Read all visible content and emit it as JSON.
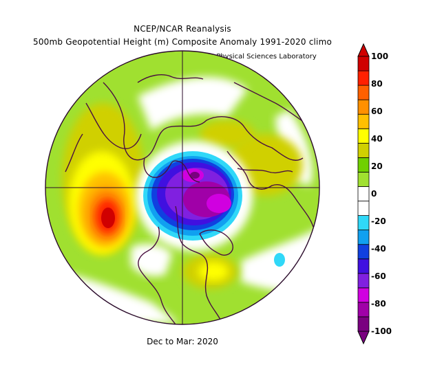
{
  "title_line1": "NCEP/NCAR Reanalysis",
  "title_line2": "500mb Geopotential Height (m) Composite Anomaly 1991-2020 climo",
  "credit": "NOAA Physical Sciences Laboratory",
  "period": "Dec to Mar: 2020",
  "colorbar": {
    "tick_labels": [
      "100",
      "80",
      "60",
      "40",
      "20",
      "0",
      "-20",
      "-40",
      "-60",
      "-80",
      "-100"
    ],
    "colors": [
      "#7a0080",
      "#a000a8",
      "#d000e0",
      "#8020e0",
      "#4010e0",
      "#1040e0",
      "#10a0f0",
      "#30d8f8",
      "#ffffff",
      "#ffffff",
      "#a0e030",
      "#70d000",
      "#d0d000",
      "#ffff00",
      "#ffc000",
      "#ff9000",
      "#ff6000",
      "#ff2000",
      "#d00000"
    ]
  },
  "map": {
    "projection": "north-polar-stereographic",
    "min_anomaly": -100,
    "max_anomaly": 100
  }
}
